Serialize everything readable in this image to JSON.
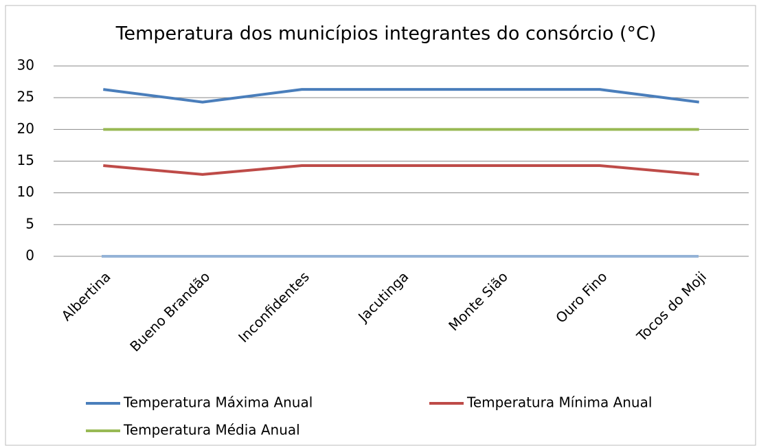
{
  "chart_data": {
    "type": "line",
    "title": "Temperatura dos municípios integrantes do consórcio (°C)",
    "categories": [
      "Albertina",
      "Bueno Brandão",
      "Inconfidentes",
      "Jacutinga",
      "Monte Sião",
      "Ouro Fino",
      "Tocos do Moji"
    ],
    "series": [
      {
        "name": "Temperatura Máxima Anual",
        "color": "#4a7ebb",
        "values": [
          26.3,
          24.3,
          26.3,
          26.3,
          26.3,
          26.3,
          24.3
        ]
      },
      {
        "name": "Temperatura Mínima Anual",
        "color": "#be4b48",
        "values": [
          14.3,
          12.9,
          14.3,
          14.3,
          14.3,
          14.3,
          12.9
        ]
      },
      {
        "name": "Temperatura Média Anual",
        "color": "#98b954",
        "values": [
          20,
          20,
          20,
          20,
          20,
          20,
          20
        ]
      }
    ],
    "ylim": [
      0,
      30
    ],
    "yticks": [
      0,
      5,
      10,
      15,
      20,
      25,
      30
    ],
    "grid": true,
    "legend": "bottom"
  }
}
